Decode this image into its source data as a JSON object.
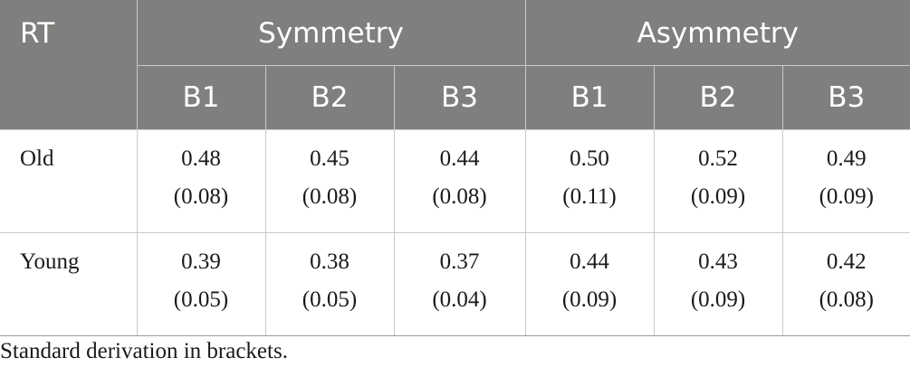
{
  "table": {
    "corner_label": "RT",
    "groups": [
      "Symmetry",
      "Asymmetry"
    ],
    "subheaders": [
      "B1",
      "B2",
      "B3",
      "B1",
      "B2",
      "B3"
    ],
    "rows": [
      {
        "label": "Old",
        "means": [
          "0.48",
          "0.45",
          "0.44",
          "0.50",
          "0.52",
          "0.49"
        ],
        "sds": [
          "(0.08)",
          "(0.08)",
          "(0.08)",
          "(0.11)",
          "(0.09)",
          "(0.09)"
        ]
      },
      {
        "label": "Young",
        "means": [
          "0.39",
          "0.38",
          "0.37",
          "0.44",
          "0.43",
          "0.42"
        ],
        "sds": [
          "(0.05)",
          "(0.05)",
          "(0.04)",
          "(0.09)",
          "(0.09)",
          "(0.08)"
        ]
      }
    ]
  },
  "footnote": "Standard derivation in brackets.",
  "colors": {
    "header_background": "#807f7d",
    "header_text": "#ffffff",
    "grid_lines": "#c9c9c9"
  }
}
